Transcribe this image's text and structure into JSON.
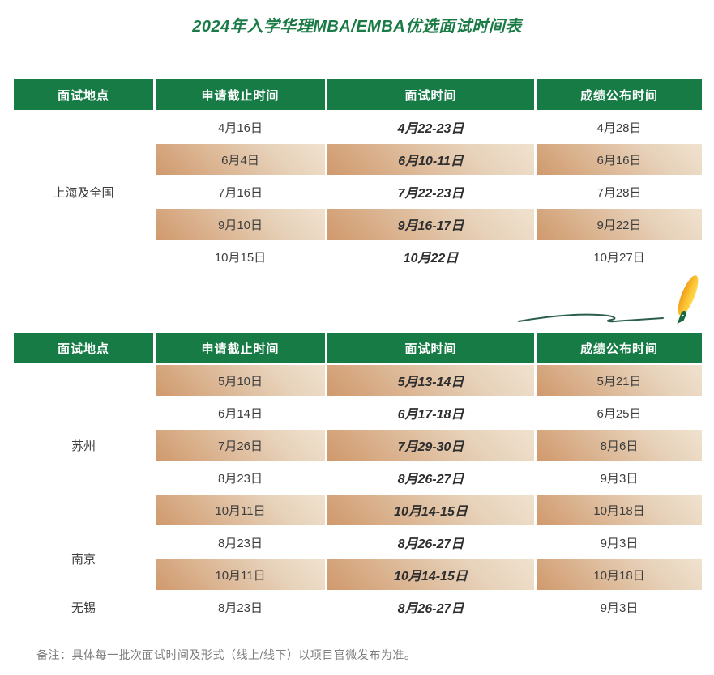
{
  "title": "2024年入学华理MBA/EMBA优选面试时间表",
  "note": "备注：具体每一批次面试时间及形式（线上/线下）以项目官微发布为准。",
  "columns": [
    "面试地点",
    "申请截止时间",
    "面试时间",
    "成绩公布时间"
  ],
  "colors": {
    "header_green": "#177B46",
    "title_green": "#1B7B46",
    "row_tan_dark": "#D0996C",
    "row_tan_light": "#F0E2CF",
    "swoosh_green": "#2B5F4C",
    "pen_yellow": "#FFD94F",
    "pen_orange": "#EF9D1C",
    "nib_green": "#176740",
    "text_dark": "#3D3D3D",
    "note_gray": "#7E7E7E"
  },
  "decor": {
    "pen_icon": "fountain-pen-with-swoosh"
  },
  "tables": [
    {
      "groups": [
        {
          "location": "上海及全国",
          "rows": [
            {
              "deadline": "4月16日",
              "interview": "4月22-23日",
              "result": "4月28日",
              "shaded": false
            },
            {
              "deadline": "6月4日",
              "interview": "6月10-11日",
              "result": "6月16日",
              "shaded": true
            },
            {
              "deadline": "7月16日",
              "interview": "7月22-23日",
              "result": "7月28日",
              "shaded": false
            },
            {
              "deadline": "9月10日",
              "interview": "9月16-17日",
              "result": "9月22日",
              "shaded": true
            },
            {
              "deadline": "10月15日",
              "interview": "10月22日",
              "result": "10月27日",
              "shaded": false
            }
          ]
        }
      ]
    },
    {
      "groups": [
        {
          "location": "苏州",
          "rows": [
            {
              "deadline": "5月10日",
              "interview": "5月13-14日",
              "result": "5月21日",
              "shaded": true
            },
            {
              "deadline": "6月14日",
              "interview": "6月17-18日",
              "result": "6月25日",
              "shaded": false
            },
            {
              "deadline": "7月26日",
              "interview": "7月29-30日",
              "result": "8月6日",
              "shaded": true
            },
            {
              "deadline": "8月23日",
              "interview": "8月26-27日",
              "result": "9月3日",
              "shaded": false
            },
            {
              "deadline": "10月11日",
              "interview": "10月14-15日",
              "result": "10月18日",
              "shaded": true
            }
          ]
        },
        {
          "location": "南京",
          "rows": [
            {
              "deadline": "8月23日",
              "interview": "8月26-27日",
              "result": "9月3日",
              "shaded": false
            },
            {
              "deadline": "10月11日",
              "interview": "10月14-15日",
              "result": "10月18日",
              "shaded": true
            }
          ]
        },
        {
          "location": "无锡",
          "rows": [
            {
              "deadline": "8月23日",
              "interview": "8月26-27日",
              "result": "9月3日",
              "shaded": false
            }
          ]
        }
      ]
    }
  ]
}
